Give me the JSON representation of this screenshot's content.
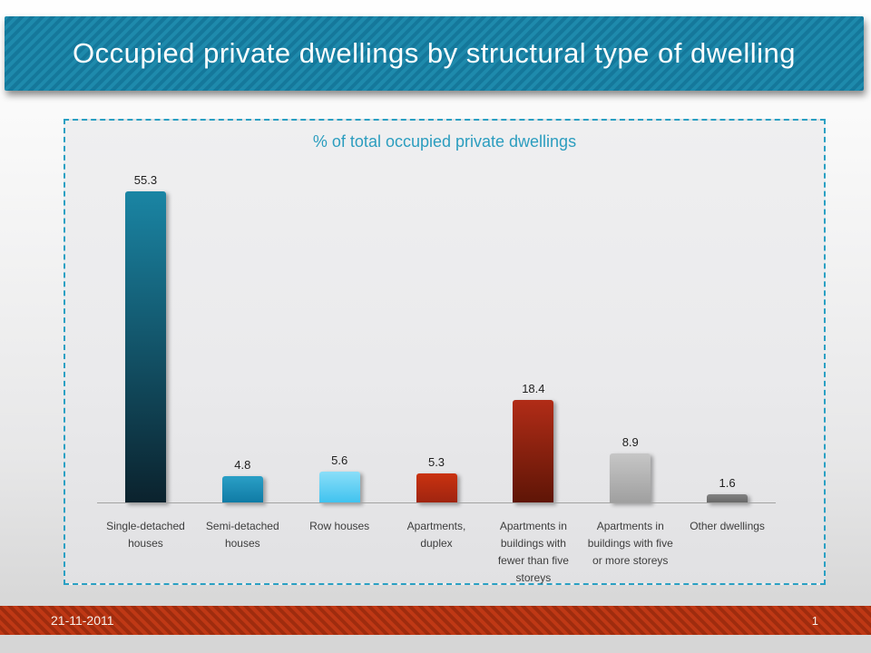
{
  "slide": {
    "title": "Occupied private dwellings by structural type of dwelling",
    "footer": {
      "date": "21-11-2011",
      "page_number": "1"
    }
  },
  "chart_data": {
    "type": "bar",
    "title": "% of total occupied private dwellings",
    "categories": [
      "Single-detached houses",
      "Semi-detached houses",
      "Row houses",
      "Apartments, duplex",
      "Apartments in buildings with fewer than five storeys",
      "Apartments in buildings with five or more storeys",
      "Other dwellings"
    ],
    "values": [
      55.3,
      4.8,
      5.6,
      5.3,
      18.4,
      8.9,
      1.6
    ],
    "bar_gradients": [
      [
        "#1a85a4",
        "#0b222d"
      ],
      [
        "#2a9fc6",
        "#0f7aa4"
      ],
      [
        "#8adef8",
        "#3ec2ef"
      ],
      [
        "#ca3210",
        "#9e2410"
      ],
      [
        "#b12c17",
        "#5e1506"
      ],
      [
        "#c6c6c6",
        "#9f9f9f"
      ],
      [
        "#828282",
        "#646464"
      ]
    ],
    "ylim": [
      0,
      60
    ],
    "xlabel": "",
    "ylabel": "",
    "grid": false,
    "legend": "none",
    "data_labels": true
  },
  "colors": {
    "banner_base": "#1e8aac",
    "banner_stripe": "#15789b",
    "footer_base": "#bf3815",
    "footer_stripe": "#9f2c0e",
    "chart_border": "#2aa0c3",
    "chart_title": "#2b9dbf",
    "axis_line": "#a3a3a3"
  }
}
